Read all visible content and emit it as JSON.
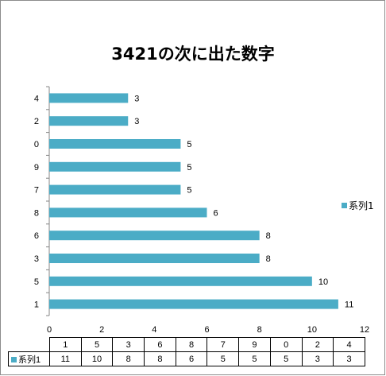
{
  "chart_data": {
    "type": "bar",
    "orientation": "horizontal",
    "title": "3421の次に出た数字",
    "categories": [
      "1",
      "5",
      "3",
      "6",
      "8",
      "7",
      "9",
      "0",
      "2",
      "4"
    ],
    "series": [
      {
        "name": "系列1",
        "values": [
          11,
          10,
          8,
          8,
          6,
          5,
          5,
          5,
          3,
          3
        ],
        "color": "#4bacc6"
      }
    ],
    "x_ticks": [
      0,
      2,
      4,
      6,
      8,
      10,
      12
    ],
    "xlim": [
      0,
      12
    ],
    "data_labels": true,
    "grid": false,
    "legend": "right",
    "data_table": true
  }
}
